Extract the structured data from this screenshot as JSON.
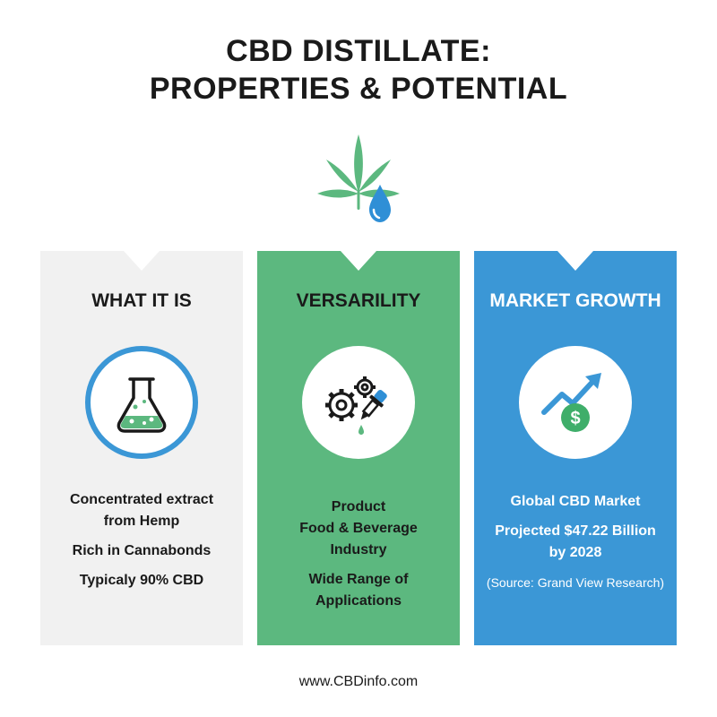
{
  "header": {
    "title_line1": "CBD DISTILLATE:",
    "title_line2": "PROPERTIES & POTENTIAL",
    "logo_icon": "cannabis-leaf-droplet-icon"
  },
  "panels": [
    {
      "title": "WHAT IT IS",
      "icon": "flask-icon",
      "background": "#f1f1f1",
      "lines": [
        "Concentrated extract",
        "from Hemp",
        "Rich in Cannabonds",
        "Typicaly 90% CBD"
      ]
    },
    {
      "title": "VERSARILITY",
      "icon": "gears-dropper-icon",
      "background": "#5cb87f",
      "lines": [
        "Product",
        "Food & Beverage",
        "Industry",
        "Wide Range of",
        "Applications"
      ]
    },
    {
      "title": "MARKET GROWTH",
      "icon": "growth-chart-dollar-icon",
      "background": "#3b97d6",
      "lines": [
        "Global CBD Market",
        "Projected $47.22 Billion",
        "by 2028",
        "(Source: Grand View Research)"
      ]
    }
  ],
  "footer": {
    "url": "www.CBDinfo.com"
  },
  "colors": {
    "green": "#5cb87f",
    "blue": "#3b97d6",
    "light_gray": "#f1f1f1"
  }
}
